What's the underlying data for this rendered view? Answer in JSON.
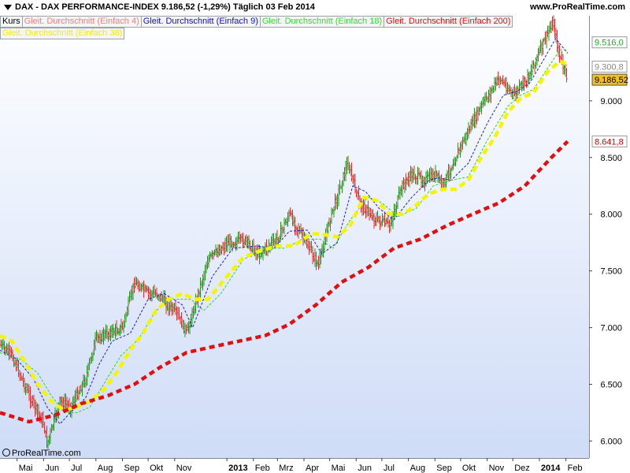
{
  "header": {
    "title": "DAX - DAX PERFORMANCE-INDEX    9.186,52 (-1,29%)    Täglich  03 Feb 2014",
    "site": "www.ProRealTime.com"
  },
  "copyright": "ProRealTime.com",
  "legend_row1": [
    {
      "label": "Kurs",
      "color": "#000000"
    },
    {
      "label": "Gleit. Durchschnitt (Einfach 4)",
      "color": "#f08080"
    },
    {
      "label": "Gleit. Durchschnitt (Einfach 9)",
      "color": "#1010d0"
    },
    {
      "label": "Gleit. Durchschnitt (Einfach 18)",
      "color": "#30e030"
    },
    {
      "label": "Gleit. Durchschnitt (Einfach 200)",
      "color": "#e01010"
    }
  ],
  "legend_row2": [
    {
      "label": "Gleit. Durchschnitt (Einfach 38)",
      "color": "#f0f000"
    }
  ],
  "colors": {
    "bg_top": "#ffffff",
    "bg_bottom": "#cfdcf7",
    "bar_up": "#1a9a1a",
    "bar_down": "#e03030",
    "ma4": "#f08080",
    "ma9": "#2020c0",
    "ma18": "#30d030",
    "ma38": "#f5f500",
    "ma200": "#e01010"
  },
  "chart_data": {
    "type": "line",
    "title": "DAX - DAX PERFORMANCE-INDEX",
    "interval": "Täglich",
    "ylim": [
      5850,
      9750
    ],
    "y_ticks": [
      "6.000",
      "6.500",
      "7.000",
      "7.500",
      "8.000",
      "8.500",
      "9.000"
    ],
    "x_ticks": [
      "Mai",
      "Jun",
      "Jul",
      "Aug",
      "Sep",
      "Okt",
      "Nov",
      "2013",
      "Feb",
      "Mrz",
      "Apr",
      "Mai",
      "Jun",
      "Jul",
      "Aug",
      "Sep",
      "Okt",
      "Nov",
      "Dez",
      "2014",
      "Feb"
    ],
    "x_tick_dates": [
      "2012-05-01",
      "2012-06-01",
      "2012-07-01",
      "2012-08-01",
      "2012-09-01",
      "2012-10-01",
      "2012-11-01",
      "2013-01-01",
      "2013-02-01",
      "2013-03-01",
      "2013-04-01",
      "2013-05-01",
      "2013-06-01",
      "2013-07-01",
      "2013-08-01",
      "2013-09-01",
      "2013-10-01",
      "2013-11-01",
      "2013-12-01",
      "2014-01-01",
      "2014-02-01"
    ],
    "x_range": [
      "2012-04-11",
      "2014-02-28"
    ],
    "price": {
      "x": [
        "2012-04-11",
        "2012-04-25",
        "2012-05-15",
        "2012-06-01",
        "2012-06-05",
        "2012-06-20",
        "2012-07-02",
        "2012-07-20",
        "2012-08-01",
        "2012-08-15",
        "2012-09-01",
        "2012-09-15",
        "2012-10-01",
        "2012-10-12",
        "2012-11-05",
        "2012-11-15",
        "2012-12-10",
        "2013-01-02",
        "2013-01-22",
        "2013-02-07",
        "2013-03-01",
        "2013-03-15",
        "2013-04-01",
        "2013-04-18",
        "2013-05-01",
        "2013-05-22",
        "2013-06-05",
        "2013-06-24",
        "2013-07-10",
        "2013-07-25",
        "2013-08-05",
        "2013-08-20",
        "2013-09-02",
        "2013-09-10",
        "2013-10-01",
        "2013-10-25",
        "2013-11-15",
        "2013-12-02",
        "2013-12-18",
        "2014-01-02",
        "2014-01-17",
        "2014-01-24",
        "2014-02-03"
      ],
      "y": [
        6850,
        6750,
        6400,
        6150,
        5970,
        6350,
        6300,
        6550,
        6900,
        6950,
        7000,
        7400,
        7300,
        7300,
        7100,
        6950,
        7600,
        7750,
        7770,
        7650,
        7780,
        8000,
        7780,
        7550,
        7950,
        8450,
        8100,
        7950,
        7900,
        8250,
        8350,
        8300,
        8350,
        8250,
        8600,
        8950,
        9200,
        9050,
        9200,
        9450,
        9700,
        9400,
        9186.52
      ]
    },
    "series": [
      {
        "name": "Gleit. Durchschnitt (Einfach 4)",
        "x": [
          "2012-04-11",
          "2012-04-25",
          "2012-05-15",
          "2012-06-01",
          "2012-06-06",
          "2012-06-22",
          "2012-07-02",
          "2012-07-20",
          "2012-08-01",
          "2012-08-15",
          "2012-09-01",
          "2012-09-15",
          "2012-10-01",
          "2012-10-12",
          "2012-11-05",
          "2012-11-15",
          "2012-12-10",
          "2013-01-02",
          "2013-01-22",
          "2013-02-07",
          "2013-03-01",
          "2013-03-15",
          "2013-04-01",
          "2013-04-18",
          "2013-05-01",
          "2013-05-22",
          "2013-06-05",
          "2013-06-24",
          "2013-07-10",
          "2013-07-25",
          "2013-08-05",
          "2013-08-20",
          "2013-09-02",
          "2013-09-10",
          "2013-10-01",
          "2013-10-25",
          "2013-11-15",
          "2013-12-02",
          "2013-12-18",
          "2014-01-02",
          "2014-01-17",
          "2014-01-24",
          "2014-02-03"
        ],
        "y": [
          6840,
          6740,
          6420,
          6180,
          6020,
          6330,
          6300,
          6530,
          6880,
          6930,
          6990,
          7380,
          7300,
          7290,
          7120,
          6980,
          7580,
          7740,
          7760,
          7660,
          7770,
          7990,
          7790,
          7580,
          7930,
          8430,
          8120,
          7970,
          7910,
          8230,
          8340,
          8300,
          8340,
          8260,
          8580,
          8930,
          9180,
          9060,
          9190,
          9430,
          9650,
          9420,
          9300.8
        ]
      },
      {
        "name": "Gleit. Durchschnitt (Einfach 9)",
        "x": [
          "2012-04-11",
          "2012-05-01",
          "2012-05-20",
          "2012-06-05",
          "2012-06-20",
          "2012-07-02",
          "2012-07-20",
          "2012-08-05",
          "2012-08-20",
          "2012-09-10",
          "2012-10-01",
          "2012-10-20",
          "2012-11-10",
          "2012-11-22",
          "2012-12-15",
          "2013-01-08",
          "2013-02-05",
          "2013-02-25",
          "2013-03-15",
          "2013-04-05",
          "2013-04-22",
          "2013-05-10",
          "2013-05-28",
          "2013-06-12",
          "2013-06-28",
          "2013-07-15",
          "2013-08-05",
          "2013-08-25",
          "2013-09-05",
          "2013-09-20",
          "2013-10-10",
          "2013-11-01",
          "2013-11-20",
          "2013-12-05",
          "2013-12-20",
          "2014-01-05",
          "2014-01-20",
          "2014-02-03"
        ],
        "y": [
          6800,
          6720,
          6550,
          6300,
          6150,
          6250,
          6380,
          6680,
          6880,
          6950,
          7250,
          7300,
          7200,
          7000,
          7450,
          7700,
          7720,
          7700,
          7850,
          7860,
          7650,
          7750,
          8250,
          8200,
          8050,
          7950,
          8150,
          8300,
          8320,
          8300,
          8450,
          8800,
          9050,
          9080,
          9150,
          9350,
          9550,
          9420
        ]
      },
      {
        "name": "Gleit. Durchschnitt (Einfach 18)",
        "x": [
          "2012-04-11",
          "2012-05-05",
          "2012-05-25",
          "2012-06-10",
          "2012-06-25",
          "2012-07-10",
          "2012-07-25",
          "2012-08-10",
          "2012-08-30",
          "2012-09-20",
          "2012-10-10",
          "2012-10-30",
          "2012-11-20",
          "2012-12-05",
          "2012-12-25",
          "2013-01-20",
          "2013-02-15",
          "2013-03-10",
          "2013-03-30",
          "2013-04-20",
          "2013-05-05",
          "2013-05-25",
          "2013-06-15",
          "2013-07-01",
          "2013-07-20",
          "2013-08-10",
          "2013-08-30",
          "2013-09-20",
          "2013-10-10",
          "2013-11-01",
          "2013-11-25",
          "2013-12-10",
          "2013-12-25",
          "2014-01-10",
          "2014-01-25",
          "2014-02-03"
        ],
        "y": [
          6780,
          6720,
          6600,
          6400,
          6250,
          6250,
          6300,
          6500,
          6750,
          6900,
          7150,
          7250,
          7250,
          7150,
          7300,
          7600,
          7700,
          7700,
          7780,
          7780,
          7700,
          7950,
          8150,
          8100,
          7980,
          8050,
          8250,
          8300,
          8330,
          8650,
          8950,
          9050,
          9100,
          9280,
          9450,
          9450
        ]
      },
      {
        "name": "Gleit. Durchschnitt (Einfach 38)",
        "x": [
          "2012-04-11",
          "2012-04-25",
          "2012-05-10",
          "2012-05-25",
          "2012-06-10",
          "2012-06-25",
          "2012-07-10",
          "2012-07-25",
          "2012-08-10",
          "2012-08-25",
          "2012-09-10",
          "2012-09-25",
          "2012-10-10",
          "2012-10-25",
          "2012-11-10",
          "2012-11-25",
          "2012-12-10",
          "2013-01-01",
          "2013-01-20",
          "2013-02-10",
          "2013-03-01",
          "2013-03-20",
          "2013-04-10",
          "2013-04-25",
          "2013-05-10",
          "2013-05-25",
          "2013-06-10",
          "2013-06-25",
          "2013-07-10",
          "2013-07-25",
          "2013-08-10",
          "2013-08-25",
          "2013-09-10",
          "2013-09-25",
          "2013-10-10",
          "2013-10-25",
          "2013-11-10",
          "2013-11-25",
          "2013-12-10",
          "2013-12-25",
          "2014-01-10",
          "2014-01-25",
          "2014-02-03"
        ],
        "y": [
          6930,
          6880,
          6700,
          6500,
          6350,
          6270,
          6300,
          6350,
          6450,
          6600,
          6800,
          6950,
          7150,
          7250,
          7300,
          7250,
          7250,
          7450,
          7620,
          7680,
          7720,
          7720,
          7830,
          7820,
          7800,
          7900,
          8150,
          8120,
          8000,
          8000,
          8080,
          8180,
          8220,
          8220,
          8300,
          8500,
          8680,
          8900,
          9020,
          9070,
          9250,
          9350,
          9320
        ]
      },
      {
        "name": "Gleit. Durchschnitt (Einfach 200)",
        "x": [
          "2012-04-11",
          "2012-05-15",
          "2012-06-15",
          "2012-07-15",
          "2012-08-15",
          "2012-09-15",
          "2012-10-15",
          "2012-11-15",
          "2012-12-15",
          "2013-01-15",
          "2013-02-15",
          "2013-03-15",
          "2013-04-15",
          "2013-05-15",
          "2013-06-15",
          "2013-07-15",
          "2013-08-15",
          "2013-09-15",
          "2013-10-15",
          "2013-11-15",
          "2013-12-15",
          "2014-01-15",
          "2014-02-03"
        ],
        "y": [
          6250,
          6170,
          6230,
          6330,
          6400,
          6500,
          6650,
          6780,
          6830,
          6880,
          6930,
          7030,
          7200,
          7400,
          7530,
          7700,
          7780,
          7900,
          8000,
          8100,
          8250,
          8500,
          8641.8
        ]
      }
    ],
    "price_labels": [
      {
        "text": "9.516,0",
        "value": 9516,
        "bg": "#ffffff",
        "fg": "#22aa22",
        "border": "#999999"
      },
      {
        "text": "9.300,8",
        "value": 9300.8,
        "bg": "#ffffff",
        "fg": "#888888",
        "border": "#999999"
      },
      {
        "text": "9.186,52",
        "value": 9186.52,
        "bg": "#f0c020",
        "fg": "#000000",
        "border": "#555555"
      },
      {
        "text": "8.641,8",
        "value": 8641.8,
        "bg": "#ffffff",
        "fg": "#dd0000",
        "border": "#999999"
      }
    ],
    "grid": false,
    "legend_position": "top-left"
  }
}
